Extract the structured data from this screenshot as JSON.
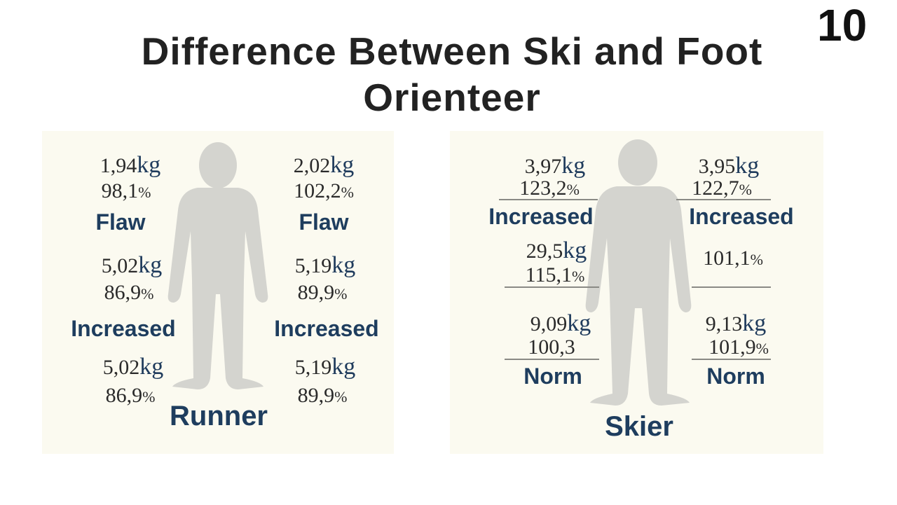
{
  "title": {
    "line1": "Difference Between Ski and Foot",
    "line2": "Orienteer",
    "slide_number": "10"
  },
  "runner": {
    "label": "Runner",
    "left": [
      {
        "kg": "1,94",
        "pct": "98,1",
        "status": "Flaw"
      },
      {
        "kg": "5,02",
        "pct": "86,9",
        "status": "Increased"
      },
      {
        "kg": "5,02",
        "pct": "86,9"
      }
    ],
    "right": [
      {
        "kg": "2,02",
        "pct": "102,2",
        "status": "Flaw"
      },
      {
        "kg": "5,19",
        "pct": "89,9",
        "status": "Increased"
      },
      {
        "kg": "5,19",
        "pct": "89,9"
      }
    ]
  },
  "skier": {
    "label": "Skier",
    "left": [
      {
        "kg": "3,97",
        "pct": "123,2",
        "status": "Increased"
      },
      {
        "kg": "29,5",
        "pct": "115,1"
      },
      {
        "kg": "9,09",
        "pct": "100,3",
        "status": "Norm"
      }
    ],
    "right": [
      {
        "kg": "3,95",
        "pct": "122,7",
        "status": "Increased"
      },
      {
        "pct": "101,1"
      },
      {
        "kg": "9,13",
        "pct": "101,9",
        "status": "Norm"
      }
    ]
  },
  "units": {
    "kg": "kg",
    "pct": "%"
  },
  "colors": {
    "label": "#1e3d5e",
    "silhouette": "#d4d4cf",
    "panel": "#fbfaf0"
  }
}
